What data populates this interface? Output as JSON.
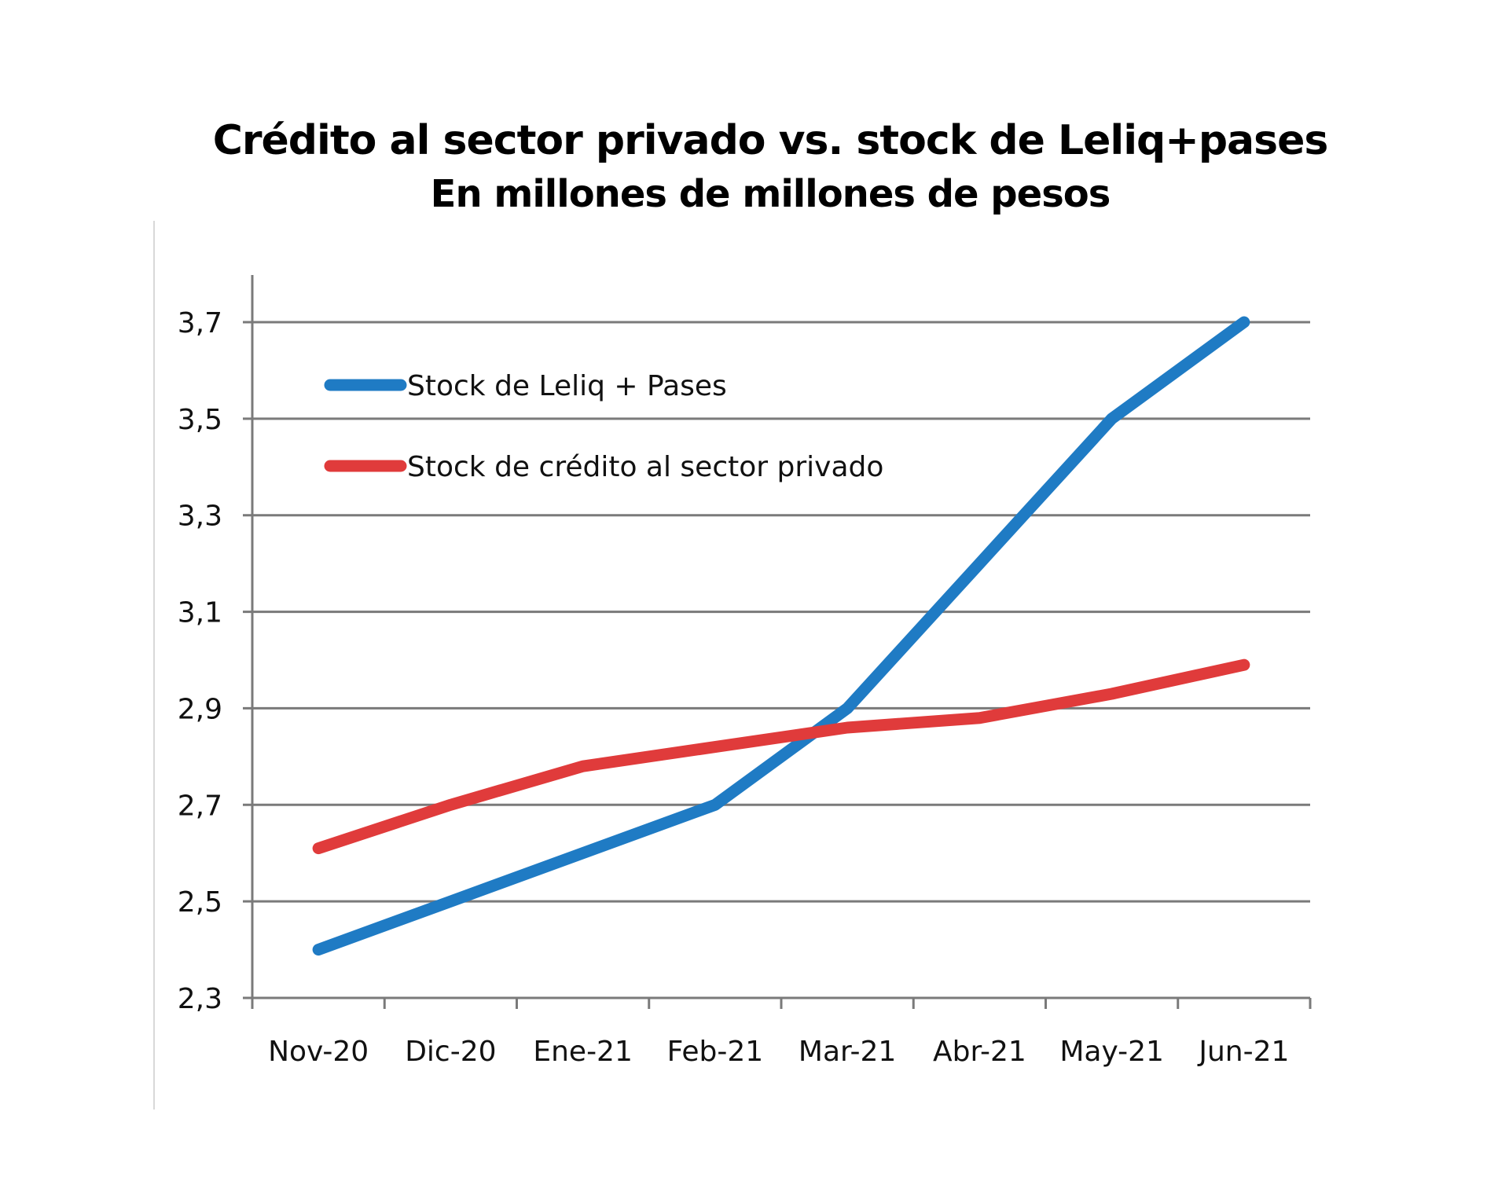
{
  "chart_data": {
    "type": "line",
    "title": "Crédito al sector privado vs. stock de Leliq+pases",
    "subtitle": "En millones de millones de pesos",
    "xlabel": "",
    "ylabel": "",
    "categories": [
      "Nov-20",
      "Dic-20",
      "Ene-21",
      "Feb-21",
      "Mar-21",
      "Abr-21",
      "May-21",
      "Jun-21"
    ],
    "yticks": [
      "3,7",
      "3,5",
      "3,3",
      "3,1",
      "2,9",
      "2,7",
      "2,5",
      "2,3"
    ],
    "ytick_values": [
      3.7,
      3.5,
      3.3,
      3.1,
      2.9,
      2.7,
      2.5,
      2.3
    ],
    "ylim": [
      2.3,
      3.7
    ],
    "grid": true,
    "legend_position": "top-left",
    "series": [
      {
        "name": "Stock de Leliq + Pases",
        "color": "#1f7bc4",
        "values": [
          2.4,
          2.5,
          2.6,
          2.7,
          2.9,
          3.2,
          3.5,
          3.7
        ]
      },
      {
        "name": "Stock de crédito al sector privado",
        "color": "#e03b3b",
        "values": [
          2.61,
          2.7,
          2.78,
          2.82,
          2.86,
          2.88,
          2.93,
          2.99
        ]
      }
    ]
  }
}
